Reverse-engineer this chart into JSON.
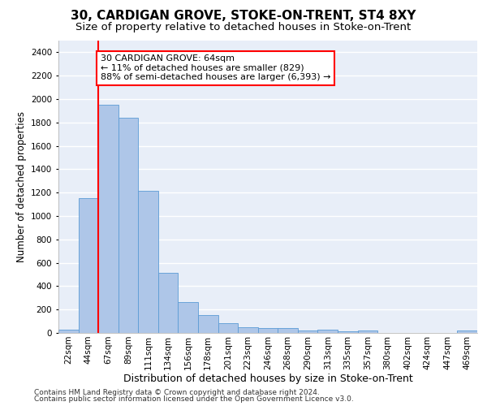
{
  "title": "30, CARDIGAN GROVE, STOKE-ON-TRENT, ST4 8XY",
  "subtitle": "Size of property relative to detached houses in Stoke-on-Trent",
  "xlabel": "Distribution of detached houses by size in Stoke-on-Trent",
  "ylabel": "Number of detached properties",
  "categories": [
    "22sqm",
    "44sqm",
    "67sqm",
    "89sqm",
    "111sqm",
    "134sqm",
    "156sqm",
    "178sqm",
    "201sqm",
    "223sqm",
    "246sqm",
    "268sqm",
    "290sqm",
    "313sqm",
    "335sqm",
    "357sqm",
    "380sqm",
    "402sqm",
    "424sqm",
    "447sqm",
    "469sqm"
  ],
  "values": [
    30,
    1150,
    1950,
    1840,
    1215,
    515,
    265,
    155,
    80,
    50,
    45,
    40,
    20,
    25,
    15,
    20,
    0,
    0,
    0,
    0,
    20
  ],
  "bar_color": "#aec6e8",
  "bar_edge_color": "#5b9bd5",
  "background_color": "#e8eef8",
  "annotation_line1": "30 CARDIGAN GROVE: 64sqm",
  "annotation_line2": "← 11% of detached houses are smaller (829)",
  "annotation_line3": "88% of semi-detached houses are larger (6,393) →",
  "vline_x": 2,
  "vline_color": "red",
  "ylim": [
    0,
    2500
  ],
  "yticks": [
    0,
    200,
    400,
    600,
    800,
    1000,
    1200,
    1400,
    1600,
    1800,
    2000,
    2200,
    2400
  ],
  "footer1": "Contains HM Land Registry data © Crown copyright and database right 2024.",
  "footer2": "Contains public sector information licensed under the Open Government Licence v3.0.",
  "title_fontsize": 11,
  "subtitle_fontsize": 9.5,
  "xlabel_fontsize": 9,
  "ylabel_fontsize": 8.5,
  "tick_fontsize": 7.5,
  "annotation_fontsize": 8,
  "footer_fontsize": 6.5
}
